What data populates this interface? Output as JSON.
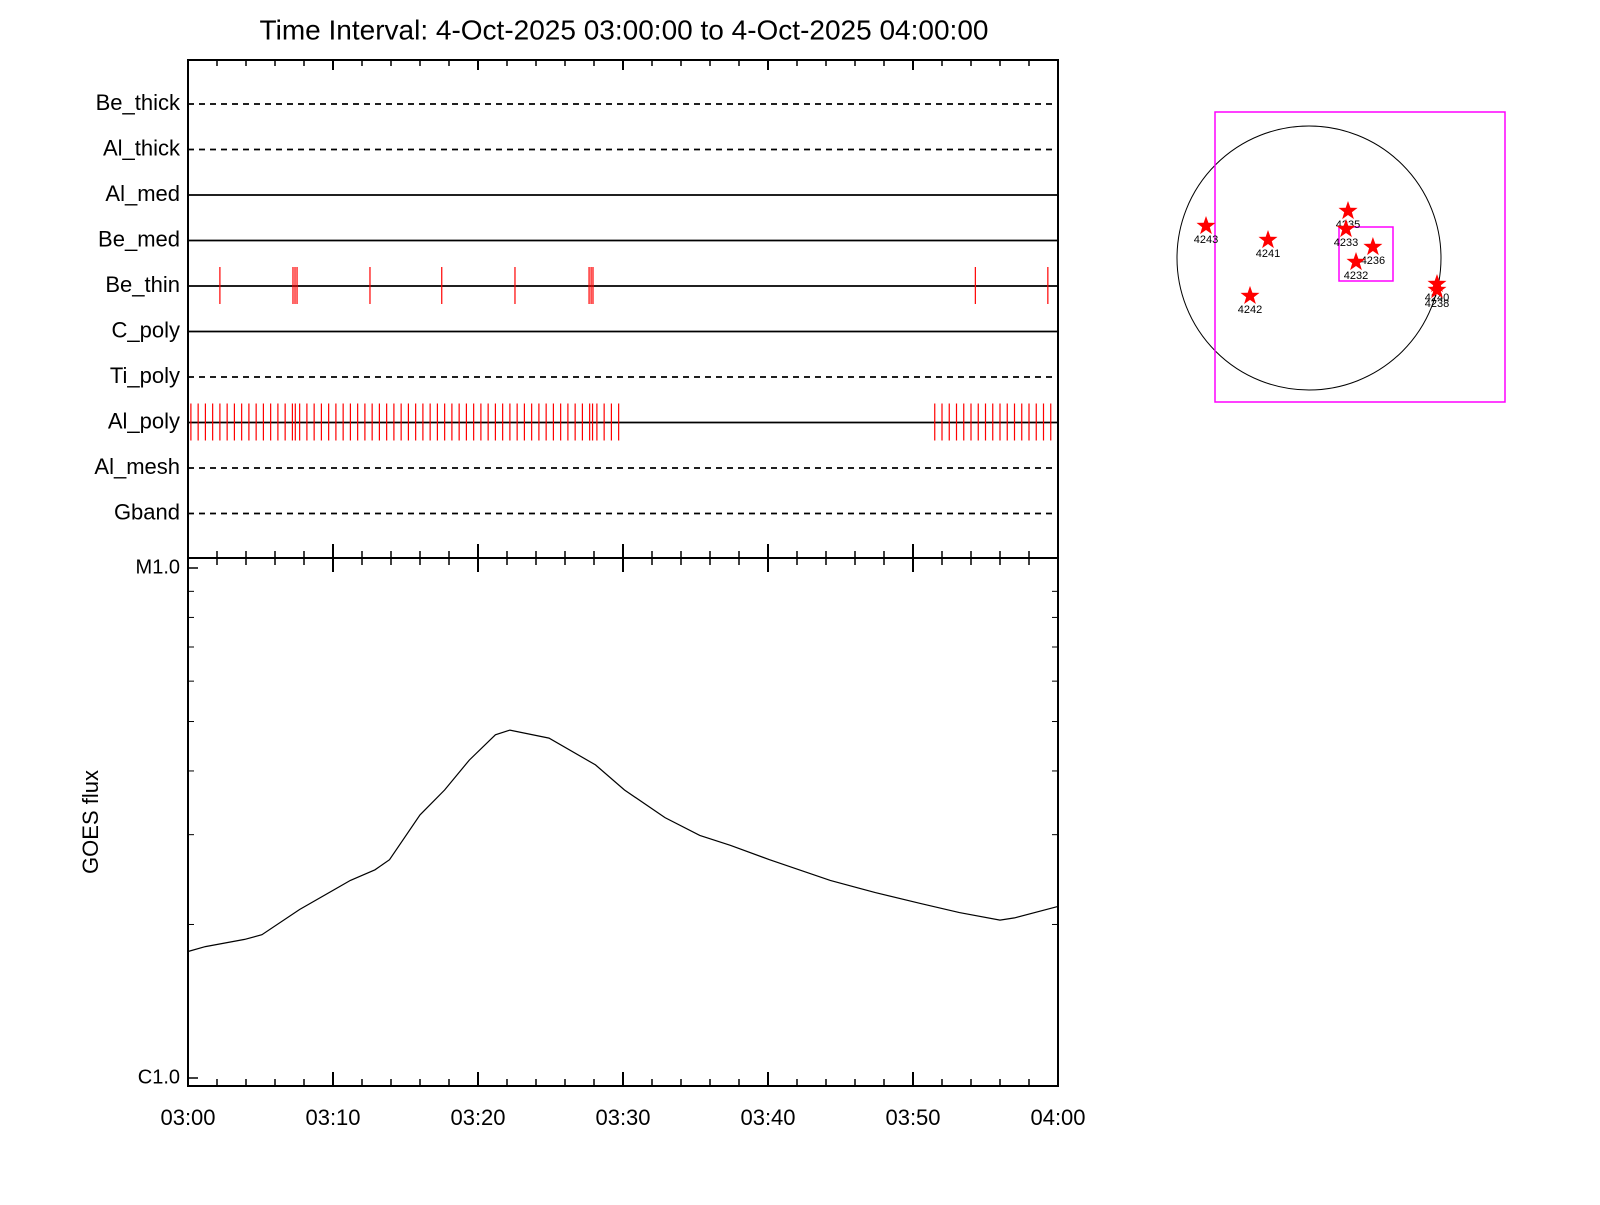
{
  "chart_data": [
    {
      "type": "timeline",
      "title": "Time Interval:  4-Oct-2025 03:00:00 to  4-Oct-2025 04:00:00",
      "categories": [
        "Be_thick",
        "Al_thick",
        "Al_med",
        "Be_med",
        "Be_thin",
        "C_poly",
        "Ti_poly",
        "Al_poly",
        "Al_mesh",
        "Gband"
      ],
      "line_styles": [
        "dashed",
        "dashed",
        "solid",
        "solid",
        "solid",
        "solid",
        "dashed",
        "solid",
        "dashed",
        "dashed"
      ],
      "xlim": [
        0,
        60
      ],
      "color": "#ff0000",
      "events": [
        [],
        [],
        [],
        [],
        [
          2.2,
          7.24,
          7.38,
          7.52,
          12.55,
          17.5,
          22.55,
          27.66,
          27.8,
          27.93,
          54.3,
          59.3
        ],
        [],
        [],
        [
          0.2,
          0.7,
          1.2,
          1.7,
          2.2,
          2.7,
          3.2,
          3.7,
          4.2,
          4.7,
          5.2,
          5.7,
          6.2,
          6.7,
          7.2,
          7.4,
          7.7,
          8.2,
          8.7,
          9.2,
          9.7,
          10.2,
          10.7,
          11.2,
          11.7,
          12.2,
          12.7,
          13.2,
          13.7,
          14.2,
          14.7,
          15.2,
          15.7,
          16.2,
          16.7,
          17.2,
          17.7,
          18.2,
          18.7,
          19.2,
          19.7,
          20.2,
          20.7,
          21.2,
          21.7,
          22.2,
          22.7,
          23.2,
          23.7,
          24.2,
          24.7,
          25.2,
          25.7,
          26.2,
          26.7,
          27.2,
          27.7,
          27.9,
          28.2,
          28.7,
          29.2,
          29.7,
          51.5,
          52,
          52.5,
          53,
          53.5,
          54,
          54.5,
          55,
          55.5,
          56,
          56.5,
          57,
          57.5,
          58,
          58.5,
          59,
          59.5
        ],
        [],
        []
      ]
    },
    {
      "type": "line",
      "ylabel": "GOES flux",
      "ylog": true,
      "color": "#000000",
      "x": [
        0,
        1.2,
        3.9,
        5.1,
        7.7,
        11.2,
        12.9,
        13.9,
        16.0,
        17.7,
        19.4,
        21.2,
        22.2,
        24.9,
        28.1,
        30.1,
        32.9,
        35.3,
        37.4,
        40.1,
        44.3,
        47.4,
        50.5,
        53.2,
        56.0,
        57.0,
        60
      ],
      "values": [
        1.77e-06,
        1.81e-06,
        1.87e-06,
        1.91e-06,
        2.14e-06,
        2.44e-06,
        2.56e-06,
        2.68e-06,
        3.28e-06,
        3.67e-06,
        4.2e-06,
        4.71e-06,
        4.81e-06,
        4.64e-06,
        4.11e-06,
        3.67e-06,
        3.24e-06,
        2.99e-06,
        2.86e-06,
        2.68e-06,
        2.44e-06,
        2.31e-06,
        2.2e-06,
        2.11e-06,
        2.04e-06,
        2.06e-06,
        2.17e-06
      ],
      "xlim": [
        0,
        60
      ],
      "xticks": [
        {
          "value": 0,
          "label": "03:00"
        },
        {
          "value": 10,
          "label": "03:10"
        },
        {
          "value": 20,
          "label": "03:20"
        },
        {
          "value": 30,
          "label": "03:30"
        },
        {
          "value": 40,
          "label": "03:40"
        },
        {
          "value": 50,
          "label": "03:50"
        },
        {
          "value": 60,
          "label": "04:00"
        }
      ],
      "xminorticks": [
        2,
        4,
        6,
        8,
        12,
        14,
        16,
        18,
        22,
        24,
        26,
        28,
        32,
        34,
        36,
        38,
        42,
        44,
        46,
        48,
        52,
        54,
        56,
        58
      ],
      "ylim": [
        1e-06,
        1e-05
      ],
      "yticks": [
        {
          "value": 1e-06,
          "label": "C1.0"
        },
        {
          "value": 1e-05,
          "label": "M1.0"
        }
      ],
      "yminorticks": [
        2e-06,
        3e-06,
        4e-06,
        5e-06,
        6e-06,
        7e-06,
        8e-06,
        9e-06
      ]
    },
    {
      "type": "sunmap",
      "xlim": [
        -960,
        960
      ],
      "ylim": [
        -960,
        960
      ],
      "color": "#ff0000",
      "labels": [
        "4243",
        "4241",
        "4235",
        "4233",
        "4236",
        "4232",
        "4242",
        "4240",
        "4238"
      ],
      "x": [
        -749,
        -298,
        284,
        269,
        465,
        342,
        -429,
        931,
        931
      ],
      "y": [
        233,
        131,
        342,
        211,
        80,
        -29,
        -276,
        -189,
        -233
      ]
    }
  ]
}
